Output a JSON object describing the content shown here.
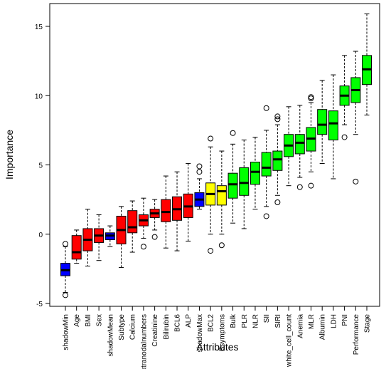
{
  "chart_data": {
    "type": "boxplot",
    "title": "",
    "xlabel": "Attributes",
    "ylabel": "Importance",
    "ylim": [
      -5.1,
      16.3
    ],
    "yticks": [
      -5,
      0,
      5,
      10,
      15
    ],
    "grid": false,
    "colors": {
      "shadow": "#0000ff",
      "rejected": "#ff0000",
      "tentative": "#ffff00",
      "confirmed": "#00ff00"
    },
    "categories": [
      {
        "name": "shadowMin",
        "status": "shadow",
        "min": -4.2,
        "q1": -3.0,
        "median": -2.6,
        "q3": -2.1,
        "max": -0.9,
        "outliers": [
          -0.7,
          -4.4
        ]
      },
      {
        "name": "Age",
        "status": "rejected",
        "min": -2.1,
        "q1": -1.8,
        "median": -1.3,
        "q3": -0.1,
        "max": 0.3,
        "outliers": []
      },
      {
        "name": "BMI",
        "status": "rejected",
        "min": -2.3,
        "q1": -1.2,
        "median": -0.4,
        "q3": 0.4,
        "max": 1.8,
        "outliers": []
      },
      {
        "name": "Sex",
        "status": "rejected",
        "min": -1.9,
        "q1": -0.6,
        "median": -0.1,
        "q3": 0.4,
        "max": 1.4,
        "outliers": []
      },
      {
        "name": "shadowMean",
        "status": "shadow",
        "min": -0.9,
        "q1": -0.4,
        "median": -0.1,
        "q3": 0.1,
        "max": 0.6,
        "outliers": []
      },
      {
        "name": "Subtype",
        "status": "rejected",
        "min": -2.4,
        "q1": -0.7,
        "median": 0.3,
        "q3": 1.3,
        "max": 2.0,
        "outliers": []
      },
      {
        "name": "Calcium",
        "status": "rejected",
        "min": -1.3,
        "q1": 0.1,
        "median": 0.5,
        "q3": 1.7,
        "max": 2.4,
        "outliers": []
      },
      {
        "name": "extranodalnumbers",
        "status": "rejected",
        "min": -0.3,
        "q1": 0.6,
        "median": 1.0,
        "q3": 1.4,
        "max": 2.6,
        "outliers": [
          -0.9
        ]
      },
      {
        "name": "Creatinine",
        "status": "rejected",
        "min": 0.3,
        "q1": 1.2,
        "median": 1.5,
        "q3": 1.8,
        "max": 2.5,
        "outliers": [
          -0.2
        ]
      },
      {
        "name": "Bilirubin",
        "status": "rejected",
        "min": -1.0,
        "q1": 0.9,
        "median": 1.6,
        "q3": 2.5,
        "max": 4.2,
        "outliers": []
      },
      {
        "name": "BCL6",
        "status": "rejected",
        "min": -1.2,
        "q1": 1.0,
        "median": 1.8,
        "q3": 2.7,
        "max": 4.5,
        "outliers": []
      },
      {
        "name": "ALP",
        "status": "rejected",
        "min": -0.5,
        "q1": 1.2,
        "median": 2.0,
        "q3": 2.9,
        "max": 5.1,
        "outliers": []
      },
      {
        "name": "shadowMax",
        "status": "shadow",
        "min": 1.8,
        "q1": 2.0,
        "median": 2.5,
        "q3": 3.0,
        "max": 4.0,
        "outliers": [
          4.5,
          4.9
        ]
      },
      {
        "name": "BCL2",
        "status": "tentative",
        "min": 0.0,
        "q1": 2.1,
        "median": 2.9,
        "q3": 3.7,
        "max": 6.3,
        "outliers": [
          6.9,
          -1.2
        ]
      },
      {
        "name": "Bsymptoms",
        "status": "tentative",
        "min": 0.0,
        "q1": 2.1,
        "median": 3.1,
        "q3": 3.5,
        "max": 6.0,
        "outliers": [
          -0.8
        ]
      },
      {
        "name": "Bulk",
        "status": "confirmed",
        "min": 0.8,
        "q1": 2.6,
        "median": 3.6,
        "q3": 4.4,
        "max": 6.5,
        "outliers": [
          7.3
        ]
      },
      {
        "name": "PLR",
        "status": "confirmed",
        "min": 0.4,
        "q1": 2.8,
        "median": 3.7,
        "q3": 4.8,
        "max": 6.8,
        "outliers": []
      },
      {
        "name": "NLR",
        "status": "confirmed",
        "min": 1.8,
        "q1": 3.6,
        "median": 4.5,
        "q3": 5.2,
        "max": 7.0,
        "outliers": []
      },
      {
        "name": "SII",
        "status": "confirmed",
        "min": 2.0,
        "q1": 4.2,
        "median": 4.8,
        "q3": 5.9,
        "max": 7.5,
        "outliers": [
          9.1,
          1.3
        ]
      },
      {
        "name": "SIRI",
        "status": "confirmed",
        "min": 2.8,
        "q1": 4.6,
        "median": 5.4,
        "q3": 6.0,
        "max": 7.9,
        "outliers": [
          8.3,
          8.5,
          2.3
        ]
      },
      {
        "name": "white_cell_count",
        "status": "confirmed",
        "min": 3.5,
        "q1": 5.6,
        "median": 6.4,
        "q3": 7.2,
        "max": 9.2,
        "outliers": []
      },
      {
        "name": "Anemia",
        "status": "confirmed",
        "min": 4.1,
        "q1": 5.8,
        "median": 6.6,
        "q3": 7.2,
        "max": 9.3,
        "outliers": [
          3.4
        ]
      },
      {
        "name": "MLR",
        "status": "confirmed",
        "min": 4.5,
        "q1": 6.0,
        "median": 6.9,
        "q3": 7.7,
        "max": 9.5,
        "outliers": [
          9.8,
          9.9,
          3.5
        ]
      },
      {
        "name": "Albumin",
        "status": "confirmed",
        "min": 5.1,
        "q1": 7.2,
        "median": 7.9,
        "q3": 9.0,
        "max": 11.1,
        "outliers": []
      },
      {
        "name": "LDH",
        "status": "confirmed",
        "min": 4.0,
        "q1": 6.8,
        "median": 8.0,
        "q3": 8.9,
        "max": 11.5,
        "outliers": []
      },
      {
        "name": "PNI",
        "status": "confirmed",
        "min": 7.9,
        "q1": 9.3,
        "median": 10.0,
        "q3": 10.7,
        "max": 12.9,
        "outliers": [
          7.0
        ]
      },
      {
        "name": "Performance",
        "status": "confirmed",
        "min": 7.2,
        "q1": 9.5,
        "median": 10.4,
        "q3": 11.3,
        "max": 13.2,
        "outliers": [
          3.8
        ]
      },
      {
        "name": "Stage",
        "status": "confirmed",
        "min": 8.6,
        "q1": 10.8,
        "median": 11.9,
        "q3": 12.9,
        "max": 15.9,
        "outliers": []
      }
    ]
  }
}
